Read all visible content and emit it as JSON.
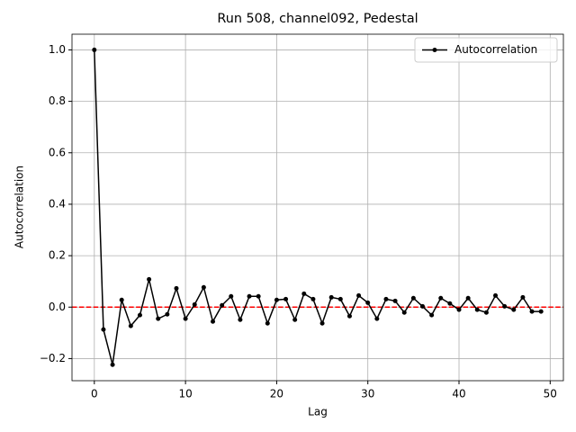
{
  "chart_data": {
    "type": "line",
    "title": "Run 508, channel092, Pedestal",
    "xlabel": "Lag",
    "ylabel": "Autocorrelation",
    "x": [
      0,
      1,
      2,
      3,
      4,
      5,
      6,
      7,
      8,
      9,
      10,
      11,
      12,
      13,
      14,
      15,
      16,
      17,
      18,
      19,
      20,
      21,
      22,
      23,
      24,
      25,
      26,
      27,
      28,
      29,
      30,
      31,
      32,
      33,
      34,
      35,
      36,
      37,
      38,
      39,
      40,
      41,
      42,
      43,
      44,
      45,
      46,
      47,
      48,
      49
    ],
    "series": [
      {
        "name": "Autocorrelation",
        "color": "#000000",
        "values": [
          1.0,
          -0.087,
          -0.224,
          0.028,
          -0.073,
          -0.031,
          0.108,
          -0.045,
          -0.028,
          0.073,
          -0.045,
          0.01,
          0.077,
          -0.056,
          0.007,
          0.042,
          -0.049,
          0.042,
          0.042,
          -0.063,
          0.028,
          0.031,
          -0.049,
          0.052,
          0.031,
          -0.063,
          0.038,
          0.031,
          -0.035,
          0.045,
          0.017,
          -0.045,
          0.031,
          0.024,
          -0.021,
          0.035,
          0.003,
          -0.031,
          0.035,
          0.014,
          -0.01,
          0.035,
          -0.01,
          -0.021,
          0.045,
          0.003,
          -0.01,
          0.038,
          -0.017,
          -0.017
        ]
      }
    ],
    "hline": {
      "value": 0,
      "color": "#ff0000"
    },
    "xlim": [
      -2.45,
      51.45
    ],
    "xticks": [
      0,
      10,
      20,
      30,
      40,
      50
    ],
    "ylim": [
      -0.286,
      1.061
    ],
    "yticks": [
      {
        "value": -0.2,
        "label": "−0.2"
      },
      {
        "value": 0,
        "label": "0.0"
      },
      0.2,
      0.4,
      0.6,
      0.8,
      {
        "value": 1,
        "label": "1.0"
      }
    ],
    "grid": true,
    "legend": "upper right"
  }
}
